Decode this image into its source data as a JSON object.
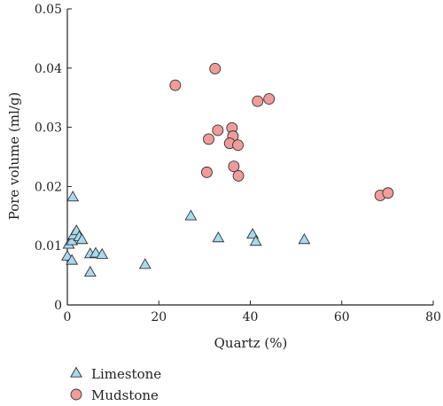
{
  "chart_data": {
    "type": "scatter",
    "xlabel": "Quartz (%)",
    "ylabel": "Pore volume (ml/g)",
    "xlim": [
      0,
      80
    ],
    "ylim": [
      0,
      0.05
    ],
    "x_ticks": [
      0,
      20,
      40,
      60,
      80
    ],
    "y_ticks": [
      0,
      0.01,
      0.02,
      0.03,
      0.04,
      0.05
    ],
    "x_tick_labels": [
      "0",
      "20",
      "40",
      "60",
      "80"
    ],
    "y_tick_labels": [
      "0",
      "0.01",
      "0.02",
      "0.03",
      "0.04",
      "0.05"
    ],
    "grid": false,
    "legend_position": "bottom-left, below plot",
    "series": [
      {
        "name": "Limestone",
        "marker": "triangle",
        "color": "#a9d9ee",
        "points": [
          [
            1.2,
            0.0182
          ],
          [
            0.3,
            0.0102
          ],
          [
            1.0,
            0.0108
          ],
          [
            1.4,
            0.0118
          ],
          [
            2.0,
            0.0125
          ],
          [
            2.6,
            0.0115
          ],
          [
            3.2,
            0.011
          ],
          [
            0.0,
            0.0082
          ],
          [
            1.0,
            0.0075
          ],
          [
            5.0,
            0.0086
          ],
          [
            6.2,
            0.0087
          ],
          [
            7.6,
            0.0085
          ],
          [
            5.0,
            0.0055
          ],
          [
            17.0,
            0.0068
          ],
          [
            27.0,
            0.015
          ],
          [
            33.0,
            0.0113
          ],
          [
            40.5,
            0.0119
          ],
          [
            41.2,
            0.0107
          ],
          [
            51.8,
            0.011
          ]
        ]
      },
      {
        "name": "Mudstone",
        "marker": "circle",
        "color": "#f19b9b",
        "points": [
          [
            32.3,
            0.0399
          ],
          [
            23.6,
            0.0371
          ],
          [
            41.6,
            0.0344
          ],
          [
            44.1,
            0.0348
          ],
          [
            32.9,
            0.0295
          ],
          [
            36.0,
            0.0299
          ],
          [
            30.9,
            0.028
          ],
          [
            36.2,
            0.0285
          ],
          [
            35.5,
            0.0273
          ],
          [
            37.3,
            0.027
          ],
          [
            36.4,
            0.0234
          ],
          [
            30.5,
            0.0224
          ],
          [
            37.4,
            0.0218
          ],
          [
            68.4,
            0.0185
          ],
          [
            70.1,
            0.0189
          ]
        ]
      }
    ]
  }
}
